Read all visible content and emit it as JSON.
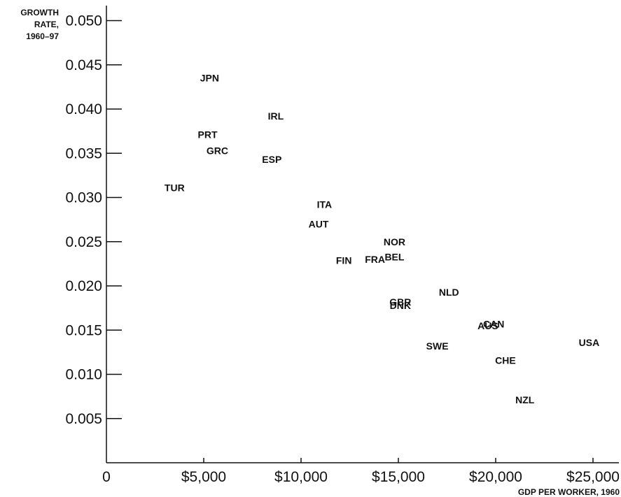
{
  "chart_data": {
    "type": "scatter",
    "title": "",
    "ylabel_lines": [
      "GROWTH",
      "RATE,",
      "1960–97"
    ],
    "xlabel": "GDP PER WORKER, 1960",
    "xlim": [
      0,
      26500
    ],
    "ylim": [
      0,
      0.051
    ],
    "x_ticks": [
      {
        "value": 0,
        "label": "0"
      },
      {
        "value": 5000,
        "label": "$5,000"
      },
      {
        "value": 10000,
        "label": "$10,000"
      },
      {
        "value": 15000,
        "label": "$15,000"
      },
      {
        "value": 20000,
        "label": "$20,000"
      },
      {
        "value": 25000,
        "label": "$25,000"
      }
    ],
    "y_ticks": [
      {
        "value": 0.005,
        "label": "0.005"
      },
      {
        "value": 0.01,
        "label": "0.010"
      },
      {
        "value": 0.015,
        "label": "0.015"
      },
      {
        "value": 0.02,
        "label": "0.020"
      },
      {
        "value": 0.025,
        "label": "0.025"
      },
      {
        "value": 0.03,
        "label": "0.030"
      },
      {
        "value": 0.035,
        "label": "0.035"
      },
      {
        "value": 0.04,
        "label": "0.040"
      },
      {
        "value": 0.045,
        "label": "0.045"
      },
      {
        "value": 0.05,
        "label": "0.050"
      }
    ],
    "points": [
      {
        "label": "JPN",
        "x": 5300,
        "y": 0.0435
      },
      {
        "label": "IRL",
        "x": 8700,
        "y": 0.0392
      },
      {
        "label": "PRT",
        "x": 5200,
        "y": 0.0371
      },
      {
        "label": "GRC",
        "x": 5700,
        "y": 0.0353
      },
      {
        "label": "ESP",
        "x": 8500,
        "y": 0.0343
      },
      {
        "label": "TUR",
        "x": 3500,
        "y": 0.0311
      },
      {
        "label": "ITA",
        "x": 11200,
        "y": 0.0292
      },
      {
        "label": "AUT",
        "x": 10900,
        "y": 0.027
      },
      {
        "label": "NOR",
        "x": 14800,
        "y": 0.025
      },
      {
        "label": "BEL",
        "x": 14800,
        "y": 0.0233
      },
      {
        "label": "FIN",
        "x": 12200,
        "y": 0.0229
      },
      {
        "label": "FRA",
        "x": 13800,
        "y": 0.023
      },
      {
        "label": "NLD",
        "x": 17600,
        "y": 0.0193
      },
      {
        "label": "GBR",
        "x": 15100,
        "y": 0.0182
      },
      {
        "label": "DNK",
        "x": 15100,
        "y": 0.0178
      },
      {
        "label": "CAN",
        "x": 19900,
        "y": 0.0157
      },
      {
        "label": "AUS",
        "x": 19600,
        "y": 0.0155
      },
      {
        "label": "USA",
        "x": 24800,
        "y": 0.0136
      },
      {
        "label": "SWE",
        "x": 17000,
        "y": 0.0132
      },
      {
        "label": "CHE",
        "x": 20500,
        "y": 0.0116
      },
      {
        "label": "NZL",
        "x": 21500,
        "y": 0.0071
      }
    ]
  }
}
